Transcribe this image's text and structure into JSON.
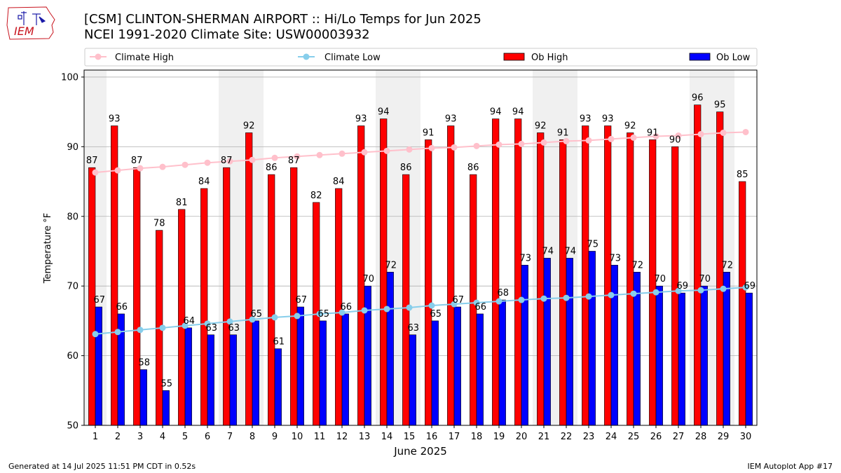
{
  "header": {
    "title_line1": "[CSM] CLINTON-SHERMAN AIRPORT :: Hi/Lo Temps for Jun 2025",
    "title_line2": "NCEI 1991-2020 Climate Site: USW00003932",
    "logo_text": "IEM"
  },
  "footer": {
    "generated": "Generated at 14 Jul 2025 11:51 PM CDT in 0.52s",
    "app": "IEM Autoplot App #17"
  },
  "colors": {
    "ob_high": "#ff0000",
    "ob_low": "#0000ff",
    "climate_high": "#ffc0cb",
    "climate_low": "#87ceeb",
    "weekend_shade": "#f0f0f0"
  },
  "chart_data": {
    "type": "bar",
    "xlabel": "June 2025",
    "ylabel": "Temperature °F",
    "ylim": [
      50,
      101
    ],
    "yticks": [
      50,
      60,
      70,
      80,
      90,
      100
    ],
    "grid": "horizontal",
    "legend_placement": "top",
    "categories": [
      "1",
      "2",
      "3",
      "4",
      "5",
      "6",
      "7",
      "8",
      "9",
      "10",
      "11",
      "12",
      "13",
      "14",
      "15",
      "16",
      "17",
      "18",
      "19",
      "20",
      "21",
      "22",
      "23",
      "24",
      "25",
      "26",
      "27",
      "28",
      "29",
      "30"
    ],
    "shaded_days": [
      1,
      7,
      8,
      14,
      15,
      21,
      22,
      28,
      29
    ],
    "series": [
      {
        "name": "Ob High",
        "kind": "bar",
        "values": [
          87,
          93,
          87,
          78,
          81,
          84,
          87,
          92,
          86,
          87,
          82,
          84,
          93,
          94,
          86,
          91,
          93,
          86,
          94,
          94,
          92,
          91,
          93,
          93,
          92,
          91,
          90,
          96,
          95,
          85
        ]
      },
      {
        "name": "Ob Low",
        "kind": "bar",
        "values": [
          67,
          66,
          58,
          55,
          64,
          63,
          63,
          65,
          61,
          67,
          65,
          66,
          70,
          72,
          63,
          65,
          67,
          66,
          68,
          73,
          74,
          74,
          75,
          73,
          72,
          70,
          69,
          70,
          72,
          69
        ]
      },
      {
        "name": "Climate High",
        "kind": "line",
        "values": [
          86.3,
          86.6,
          86.9,
          87.1,
          87.4,
          87.7,
          87.9,
          88.1,
          88.4,
          88.6,
          88.8,
          89.0,
          89.2,
          89.4,
          89.6,
          89.8,
          89.9,
          90.1,
          90.3,
          90.4,
          90.6,
          90.8,
          90.9,
          91.1,
          91.3,
          91.5,
          91.6,
          91.8,
          92.0,
          92.1
        ]
      },
      {
        "name": "Climate Low",
        "kind": "line",
        "values": [
          63.1,
          63.4,
          63.7,
          64.0,
          64.3,
          64.6,
          64.9,
          65.2,
          65.5,
          65.7,
          66.0,
          66.2,
          66.5,
          66.7,
          66.9,
          67.2,
          67.4,
          67.6,
          67.8,
          68.0,
          68.2,
          68.3,
          68.5,
          68.7,
          68.9,
          69.1,
          69.3,
          69.4,
          69.6,
          69.8
        ]
      }
    ]
  }
}
